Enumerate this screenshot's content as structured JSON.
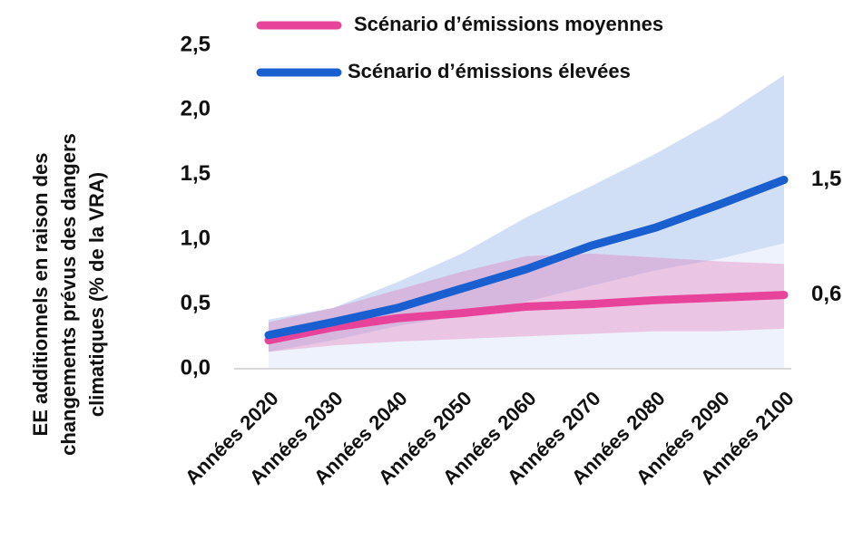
{
  "chart_data": {
    "type": "line",
    "y_label": [
      "EE additionnels en raison des",
      "changements prévus des dangers",
      "climatiques (% de la VRA)"
    ],
    "categories": [
      "Années 2020",
      "Années 2030",
      "Années 2040",
      "Années 2050",
      "Années 2060",
      "Années 2070",
      "Années 2080",
      "Années 2090",
      "Années 2100"
    ],
    "ylim": [
      0,
      2.5
    ],
    "yticks": [
      {
        "value": 0,
        "label": "0,0"
      },
      {
        "value": 0.5,
        "label": "0,5"
      },
      {
        "value": 1,
        "label": "1,0"
      },
      {
        "value": 1.5,
        "label": "1,5"
      },
      {
        "value": 2,
        "label": "2,0"
      },
      {
        "value": 2.5,
        "label": "2,5"
      }
    ],
    "series": [
      {
        "name": "Scénario d’émissions moyennes",
        "color": "#e8439a",
        "values": [
          0.22,
          0.32,
          0.39,
          0.43,
          0.48,
          0.5,
          0.53,
          0.55,
          0.57
        ],
        "lower": [
          0.13,
          0.18,
          0.21,
          0.23,
          0.25,
          0.27,
          0.29,
          0.29,
          0.31
        ],
        "upper": [
          0.36,
          0.47,
          0.61,
          0.75,
          0.87,
          0.89,
          0.86,
          0.83,
          0.81
        ],
        "value_labels": [
          null,
          null,
          null,
          null,
          null,
          null,
          null,
          null,
          "0,6"
        ]
      },
      {
        "name": "Scénario d’émissions élevées",
        "color": "#1a5fd0",
        "values": [
          0.26,
          0.36,
          0.47,
          0.62,
          0.77,
          0.95,
          1.09,
          1.27,
          1.46
        ],
        "lower": [
          0.13,
          0.22,
          0.33,
          0.41,
          0.52,
          0.64,
          0.76,
          0.85,
          0.97
        ],
        "upper": [
          0.38,
          0.47,
          0.67,
          0.89,
          1.17,
          1.41,
          1.66,
          1.94,
          2.27
        ],
        "value_labels": [
          null,
          null,
          null,
          null,
          null,
          null,
          null,
          null,
          "1,5"
        ]
      }
    ]
  }
}
